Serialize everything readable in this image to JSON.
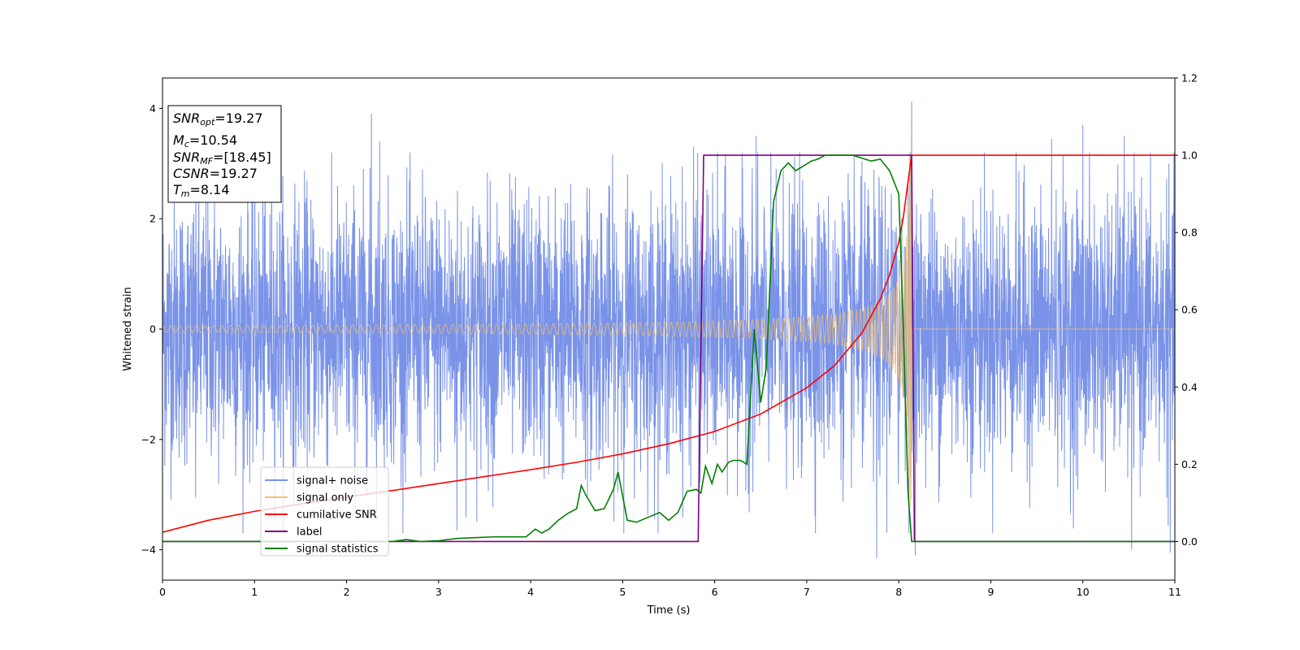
{
  "chart_data": {
    "type": "line",
    "xlabel": "Time (s)",
    "ylabel": "Whitened strain",
    "xlim": [
      0,
      11
    ],
    "ylim": [
      -4.55,
      4.55
    ],
    "y2lim": [
      -0.1,
      1.2
    ],
    "x_ticks": [
      0,
      1,
      2,
      3,
      4,
      5,
      6,
      7,
      8,
      9,
      10,
      11
    ],
    "y_ticks": [
      -4,
      -2,
      0,
      2,
      4
    ],
    "y2_ticks": [
      0.0,
      0.2,
      0.4,
      0.6,
      0.8,
      1.0,
      1.2
    ],
    "y2_tick_labels": [
      "0.0",
      "0.2",
      "0.4",
      "0.6",
      "0.8",
      "1.0",
      "1.2"
    ],
    "legend_position": "lower-left",
    "annotation": [
      {
        "base": "SNR",
        "sub": "opt",
        "value": "=19.27"
      },
      {
        "base": "M",
        "sub": "c",
        "value": "=10.54"
      },
      {
        "base": "SNR",
        "sub": "MF",
        "value": "=[18.45]"
      },
      {
        "base": "CSNR",
        "sub": "",
        "value": "=19.27"
      },
      {
        "base": "T",
        "sub": "m",
        "value": "=8.14"
      }
    ],
    "series": [
      {
        "name": "signal+ noise",
        "axis": "left",
        "color": "#7a93e8",
        "noise_std": 1.2,
        "peak_points": [
          {
            "x": 2.27,
            "y": 3.9
          },
          {
            "x": 2.36,
            "y": 3.4
          },
          {
            "x": 5.77,
            "y": 3.3
          },
          {
            "x": 6.45,
            "y": 3.5
          },
          {
            "x": 8.14,
            "y": 4.12
          },
          {
            "x": 9.66,
            "y": 3.45
          },
          {
            "x": 10.0,
            "y": 3.7
          },
          {
            "x": 10.45,
            "y": 3.5
          },
          {
            "x": 7.76,
            "y": -4.15
          },
          {
            "x": 8.18,
            "y": -4.1
          },
          {
            "x": 10.95,
            "y": -4.05
          },
          {
            "x": 10.53,
            "y": -4.0
          },
          {
            "x": 3.2,
            "y": -3.65
          },
          {
            "x": 0.36,
            "y": -3.05
          }
        ]
      },
      {
        "name": "signal only",
        "axis": "left",
        "color": "#f5c06a",
        "x_start": 0,
        "x_merge": 8.14,
        "amp_start": 0.06,
        "amp_peak": 3.2,
        "x_end": 11
      },
      {
        "name": "cumilative SNR",
        "axis": "right",
        "color": "#ff0000",
        "x": [
          0,
          0.5,
          1,
          1.5,
          2,
          2.5,
          3,
          3.5,
          4,
          4.5,
          5,
          5.5,
          6,
          6.5,
          7,
          7.3,
          7.6,
          7.8,
          7.9,
          8.0,
          8.05,
          8.1,
          8.14,
          8.2,
          9,
          10,
          11
        ],
        "values": [
          0.024,
          0.055,
          0.078,
          0.097,
          0.115,
          0.132,
          0.15,
          0.168,
          0.186,
          0.205,
          0.227,
          0.253,
          0.285,
          0.33,
          0.398,
          0.455,
          0.54,
          0.628,
          0.69,
          0.775,
          0.84,
          0.93,
          1.0,
          1.0,
          1.0,
          1.0,
          1.0
        ]
      },
      {
        "name": "label",
        "axis": "right",
        "color": "#800080",
        "x": [
          0,
          5.82,
          5.88,
          8.14,
          8.17,
          11
        ],
        "values": [
          0.0,
          0.0,
          1.0,
          1.0,
          0.0,
          0.0
        ]
      },
      {
        "name": "signal statistics",
        "axis": "right",
        "color": "#008000",
        "x": [
          0,
          1,
          2,
          2.5,
          2.65,
          2.8,
          3.0,
          3.2,
          3.4,
          3.6,
          3.8,
          3.95,
          4.05,
          4.12,
          4.2,
          4.3,
          4.4,
          4.5,
          4.55,
          4.6,
          4.7,
          4.8,
          4.9,
          4.95,
          5.05,
          5.15,
          5.3,
          5.4,
          5.5,
          5.6,
          5.7,
          5.8,
          5.85,
          5.9,
          5.97,
          6.03,
          6.08,
          6.15,
          6.2,
          6.28,
          6.35,
          6.43,
          6.5,
          6.56,
          6.64,
          6.72,
          6.8,
          6.88,
          6.95,
          7.05,
          7.12,
          7.2,
          7.3,
          7.5,
          7.7,
          7.8,
          7.9,
          8.0,
          8.05,
          8.1,
          8.14,
          8.2,
          9,
          10,
          11
        ],
        "values": [
          0.0,
          0.0,
          0.0,
          0.0,
          0.005,
          0.0,
          0.002,
          0.008,
          0.01,
          0.012,
          0.012,
          0.012,
          0.032,
          0.022,
          0.032,
          0.055,
          0.072,
          0.085,
          0.145,
          0.12,
          0.08,
          0.085,
          0.135,
          0.18,
          0.055,
          0.05,
          0.065,
          0.075,
          0.055,
          0.075,
          0.13,
          0.135,
          0.125,
          0.195,
          0.15,
          0.2,
          0.18,
          0.205,
          0.21,
          0.21,
          0.2,
          0.55,
          0.36,
          0.45,
          0.88,
          0.96,
          0.98,
          0.96,
          0.97,
          0.985,
          0.99,
          1.0,
          1.0,
          1.0,
          0.985,
          0.99,
          0.96,
          0.9,
          0.55,
          0.13,
          0.0,
          0.0,
          0.0,
          0.0,
          0.0
        ]
      }
    ]
  }
}
